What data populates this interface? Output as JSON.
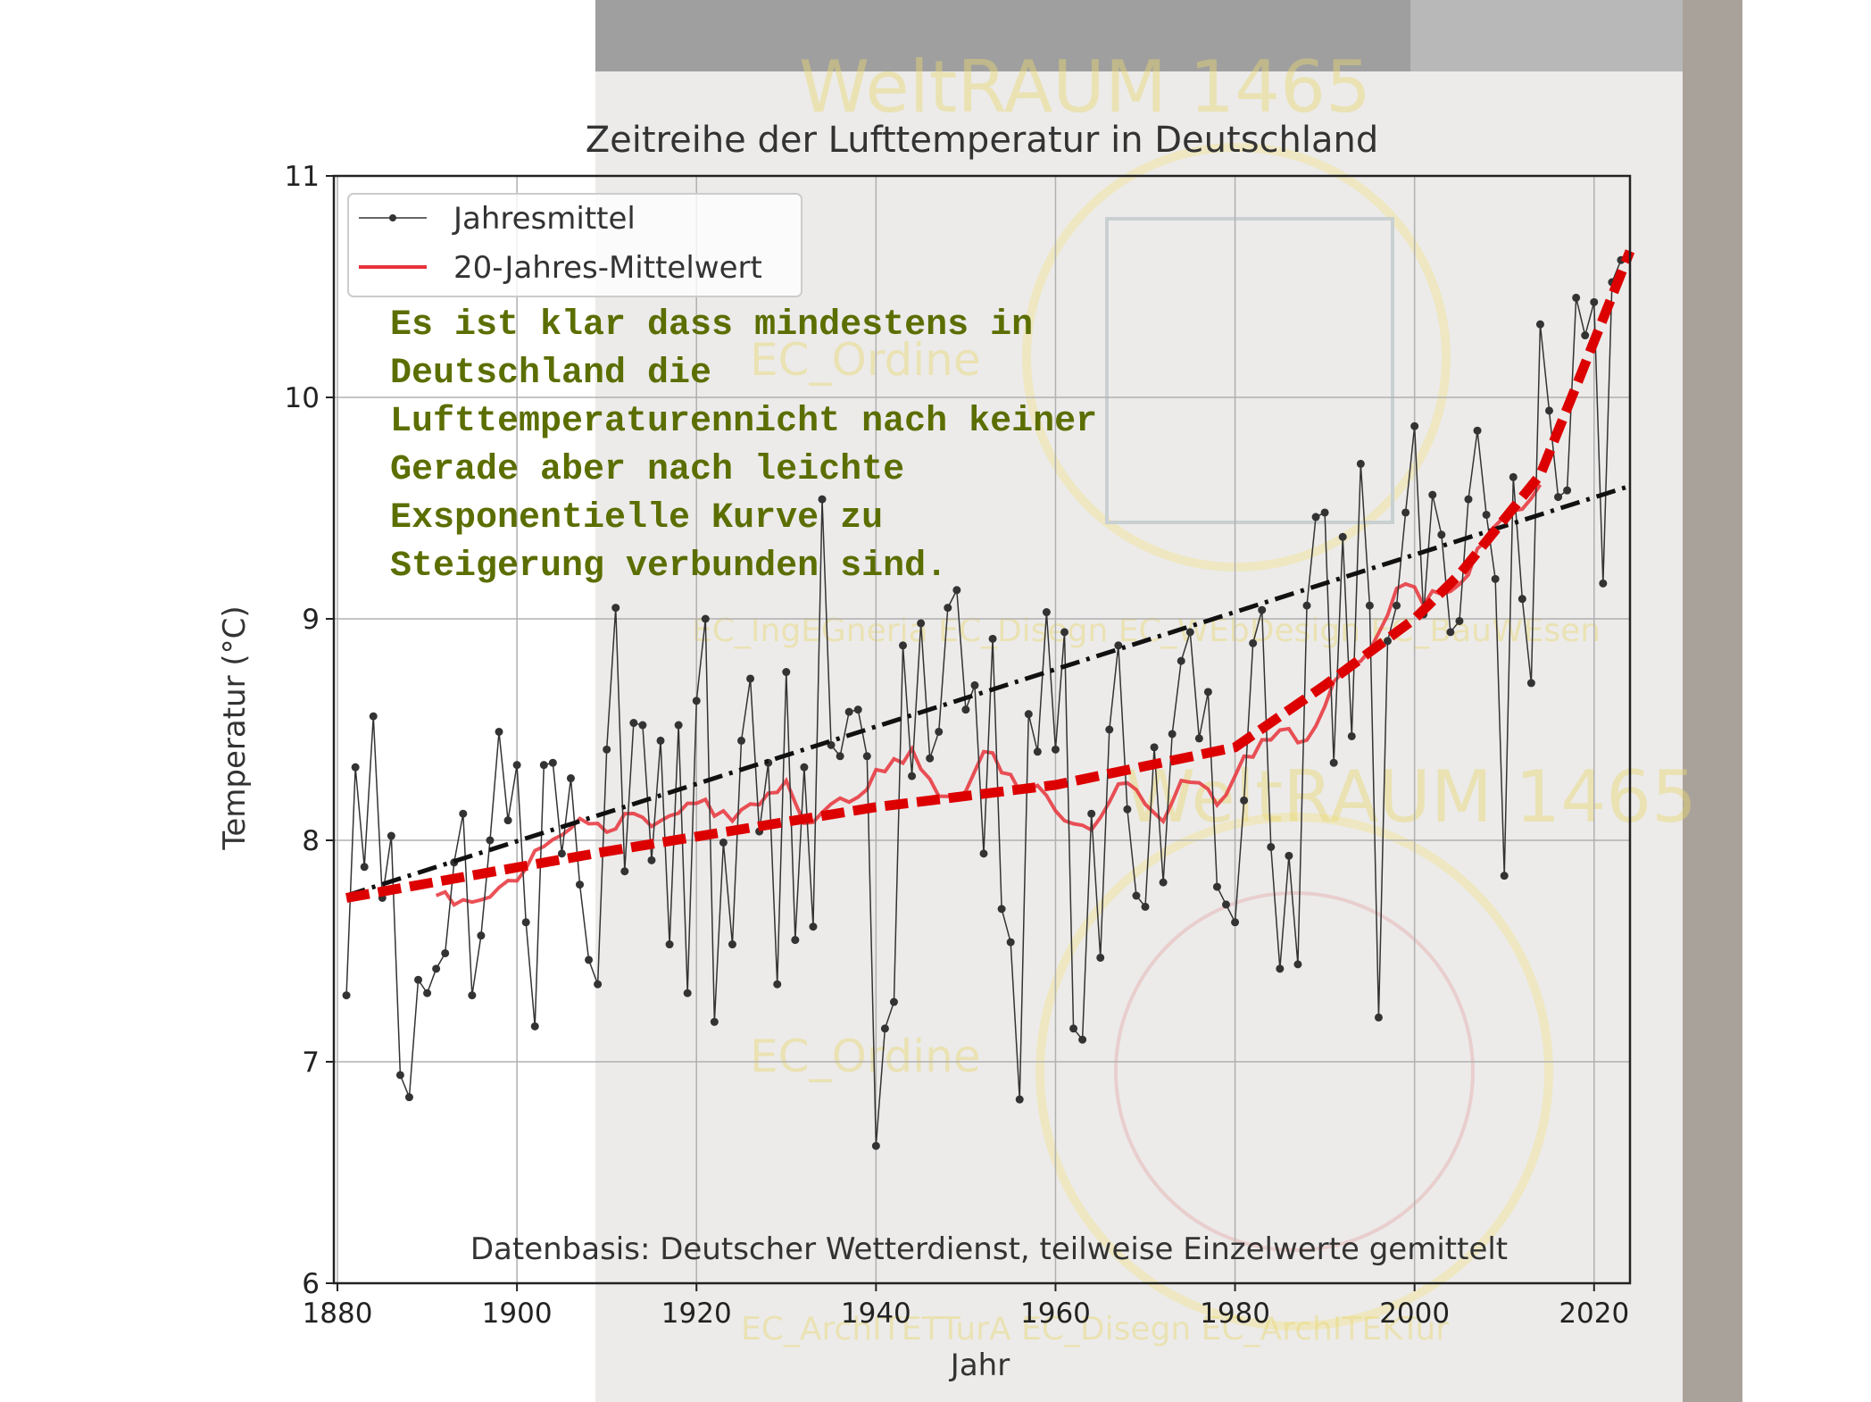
{
  "chart_data": {
    "type": "line",
    "title": "Zeitreihe der Lufttemperatur in Deutschland",
    "xlabel": "Jahr",
    "ylabel": "Temperatur (°C)",
    "xlim": [
      1879.6,
      2024
    ],
    "ylim": [
      6,
      11
    ],
    "xticks": [
      1880,
      1900,
      1920,
      1940,
      1960,
      1980,
      2000,
      2020
    ],
    "yticks": [
      6,
      7,
      8,
      9,
      10,
      11
    ],
    "grid": true,
    "legend": {
      "placement": "top-left",
      "entries": [
        "Jahresmittel",
        "20-Jahres-Mittelwert"
      ]
    },
    "footnote": "Datenbasis: Deutscher Wetterdienst, teilweise Einzelwerte gemittelt",
    "series": [
      {
        "name": "Jahresmittel",
        "color": "#333333",
        "start_year": 1881,
        "values": [
          7.3,
          8.33,
          7.88,
          8.56,
          7.74,
          8.02,
          6.94,
          6.84,
          7.37,
          7.31,
          7.42,
          7.49,
          7.9,
          8.12,
          7.3,
          7.57,
          8.0,
          8.49,
          8.09,
          8.34,
          7.63,
          7.16,
          8.34,
          8.35,
          7.94,
          8.28,
          7.8,
          7.46,
          7.35,
          8.41,
          9.05,
          7.86,
          8.53,
          8.52,
          7.91,
          8.45,
          7.53,
          8.52,
          7.31,
          8.63,
          9.0,
          7.18,
          7.99,
          7.53,
          8.45,
          8.73,
          8.04,
          8.35,
          7.35,
          8.76,
          7.55,
          8.33,
          7.61,
          9.54,
          8.43,
          8.38,
          8.58,
          8.59,
          8.38,
          6.62,
          7.15,
          7.27,
          8.88,
          8.29,
          8.98,
          8.37,
          8.49,
          9.05,
          9.13,
          8.59,
          8.7,
          7.94,
          8.91,
          7.69,
          7.54,
          6.83,
          8.57,
          8.4,
          9.03,
          8.41,
          8.94,
          7.15,
          7.1,
          8.12,
          7.47,
          8.5,
          8.88,
          8.14,
          7.75,
          7.7,
          8.42,
          7.81,
          8.48,
          8.81,
          8.94,
          8.46,
          8.67,
          7.79,
          7.71,
          7.63,
          8.18,
          8.89,
          9.04,
          7.97,
          7.42,
          7.93,
          7.44,
          9.06,
          9.46,
          9.48,
          8.35,
          9.37,
          8.47,
          9.7,
          9.06,
          7.2,
          8.9,
          9.06,
          9.48,
          9.87,
          9.02,
          9.56,
          9.38,
          8.94,
          8.99,
          9.54,
          9.85,
          9.47,
          9.18,
          7.84,
          9.64,
          9.09,
          8.71,
          10.33,
          9.94,
          9.55,
          9.58,
          10.45,
          10.28,
          10.43,
          9.16,
          10.52,
          10.62
        ]
      },
      {
        "name": "20-Jahres-Mittelwert",
        "color": "#e8333a",
        "window": 20
      }
    ],
    "annotation_lines": [
      {
        "name": "linear-trend",
        "color": "#111111",
        "style": "dash-dot",
        "points": [
          [
            1881,
            7.75
          ],
          [
            2024,
            9.6
          ]
        ]
      },
      {
        "name": "exponential-trend",
        "color": "#dd0000",
        "style": "dashed",
        "points": [
          [
            1881,
            7.74
          ],
          [
            1910,
            7.95
          ],
          [
            1940,
            8.15
          ],
          [
            1960,
            8.25
          ],
          [
            1980,
            8.42
          ],
          [
            1990,
            8.7
          ],
          [
            2000,
            9.0
          ],
          [
            2005,
            9.2
          ],
          [
            2010,
            9.45
          ],
          [
            2014,
            9.65
          ],
          [
            2018,
            10.05
          ],
          [
            2024,
            10.66
          ]
        ]
      }
    ],
    "annotation_text": [
      "Es ist klar dass mindestens in",
      "Deutschland die",
      "Lufttemperaturennicht nach keiner",
      "Gerade  aber nach leichte",
      "Exsponentielle Kurve  zu",
      "Steigerung verbunden sind."
    ]
  },
  "watermarks": [
    "WeltRAUM 1465",
    "EC_IngEGneria EC_Disegn EC_WEbDesign EC_BauWEsen",
    "EC_ArchITETTurA EC_Disegn EC_ArchITEKTur",
    "EC_Ordine",
    "EC_Ordine",
    "WeltRAUM 1465"
  ]
}
